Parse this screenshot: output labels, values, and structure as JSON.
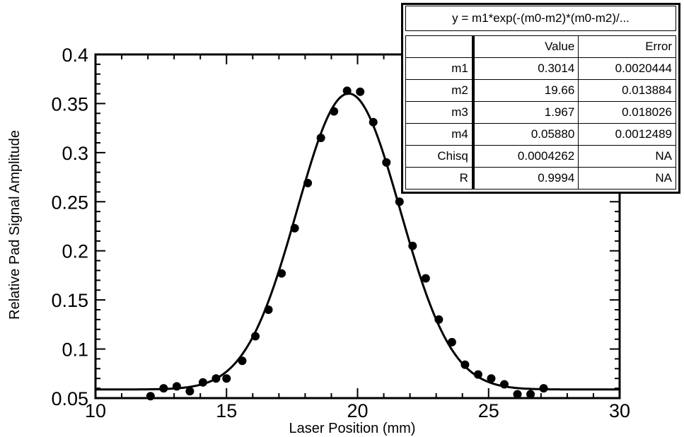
{
  "chart_data": {
    "type": "scatter",
    "xlabel": "Laser Position (mm)",
    "ylabel": "Relative Pad Signal Amplitude",
    "xlim": [
      10,
      30
    ],
    "ylim": [
      0.05,
      0.4
    ],
    "x_ticks": [
      "10",
      "15",
      "20",
      "25",
      "30"
    ],
    "y_ticks": [
      "0.05",
      "0.1",
      "0.15",
      "0.2",
      "0.25",
      "0.3",
      "0.35",
      "0.4"
    ],
    "grid": false,
    "series": [
      {
        "x": [
          12.1,
          12.6,
          13.1,
          13.6,
          14.1,
          14.6,
          15.0,
          15.6,
          16.1,
          16.6,
          17.1,
          17.6,
          18.1,
          18.6,
          19.1,
          19.6,
          20.1,
          20.6,
          21.1,
          21.6,
          22.1,
          22.6,
          23.1,
          23.6,
          24.1,
          24.6,
          25.1,
          25.6,
          26.1,
          26.6,
          27.1
        ],
        "y": [
          0.052,
          0.06,
          0.062,
          0.057,
          0.066,
          0.07,
          0.07,
          0.088,
          0.113,
          0.14,
          0.177,
          0.223,
          0.269,
          0.315,
          0.342,
          0.363,
          0.362,
          0.331,
          0.29,
          0.25,
          0.205,
          0.172,
          0.13,
          0.107,
          0.084,
          0.074,
          0.07,
          0.064,
          0.054,
          0.054,
          0.06
        ]
      }
    ],
    "fit": {
      "m1": 0.3014,
      "m2": 19.66,
      "m3": 1.967,
      "m4": 0.0588
    }
  },
  "fit_table": {
    "equation": "y = m1*exp(-(m0-m2)*(m0-m2)/...",
    "headers": [
      "",
      "Value",
      "Error"
    ],
    "rows": [
      [
        "m1",
        "0.3014",
        "0.0020444"
      ],
      [
        "m2",
        "19.66",
        "0.013884"
      ],
      [
        "m3",
        "1.967",
        "0.018026"
      ],
      [
        "m4",
        "0.05880",
        "0.0012489"
      ],
      [
        "Chisq",
        "0.0004262",
        "NA"
      ],
      [
        "R",
        "0.9994",
        "NA"
      ]
    ]
  }
}
